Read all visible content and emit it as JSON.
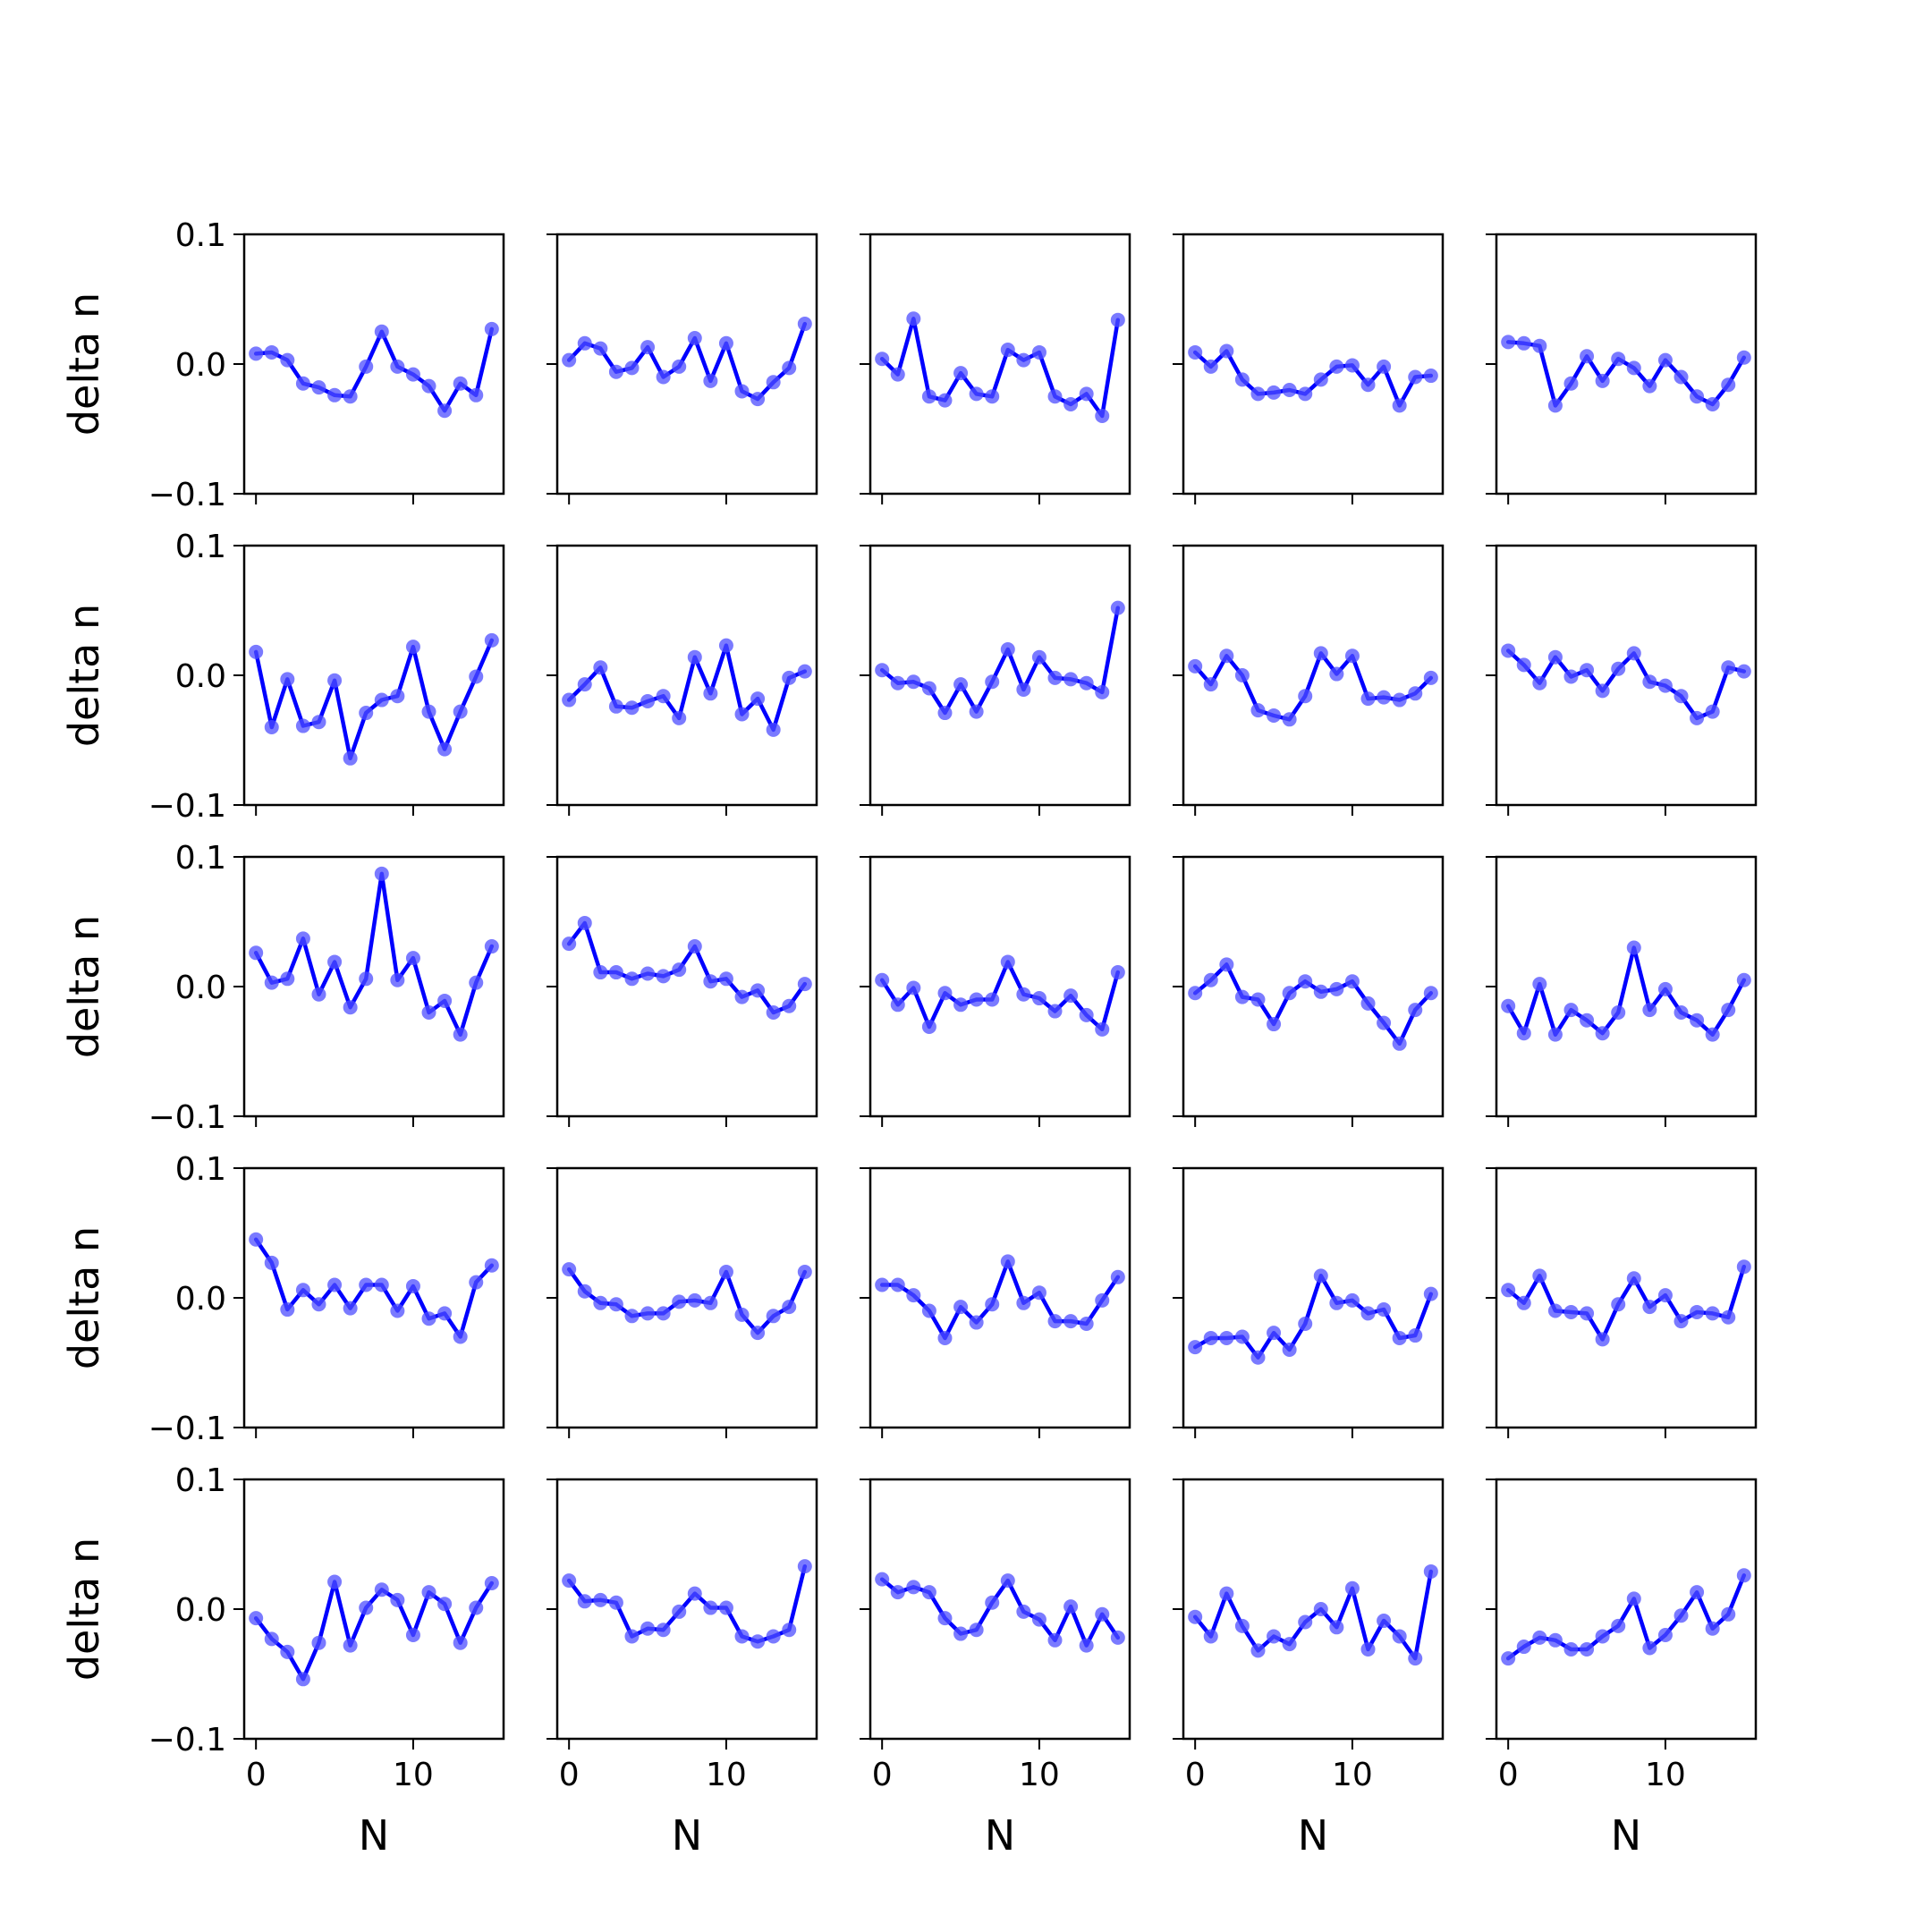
{
  "colors": {
    "line": "#0000ff",
    "marker": "#4d4dff"
  },
  "chart_data": {
    "type": "line",
    "grid": false,
    "rows": 5,
    "cols": 5,
    "xlabel": "N",
    "ylabel": "delta n",
    "xlim": [
      -0.75,
      15.75
    ],
    "ylim": [
      -0.1,
      0.1
    ],
    "xticks": [
      0,
      10
    ],
    "xtick_labels": [
      "0",
      "10"
    ],
    "yticks": [
      -0.1,
      0.0,
      0.1
    ],
    "ytick_labels": [
      "−0.1",
      "0.0",
      "0.1"
    ],
    "x": [
      0,
      1,
      2,
      3,
      4,
      5,
      6,
      7,
      8,
      9,
      10,
      11,
      12,
      13,
      14,
      15
    ],
    "panels": [
      [
        0.008,
        0.009,
        0.003,
        -0.015,
        -0.018,
        -0.024,
        -0.025,
        -0.002,
        0.025,
        -0.002,
        -0.008,
        -0.017,
        -0.036,
        -0.015,
        -0.024,
        0.027
      ],
      [
        0.003,
        0.016,
        0.012,
        -0.006,
        -0.003,
        0.013,
        -0.01,
        -0.002,
        0.02,
        -0.013,
        0.016,
        -0.021,
        -0.027,
        -0.014,
        -0.003,
        0.031
      ],
      [
        0.004,
        -0.008,
        0.035,
        -0.025,
        -0.028,
        -0.007,
        -0.023,
        -0.025,
        0.011,
        0.003,
        0.009,
        -0.025,
        -0.031,
        -0.023,
        -0.04,
        0.034
      ],
      [
        0.009,
        -0.002,
        0.01,
        -0.012,
        -0.023,
        -0.022,
        -0.02,
        -0.023,
        -0.012,
        -0.002,
        -0.001,
        -0.016,
        -0.002,
        -0.032,
        -0.01,
        -0.009
      ],
      [
        0.017,
        0.016,
        0.014,
        -0.032,
        -0.015,
        0.006,
        -0.013,
        0.004,
        -0.003,
        -0.017,
        0.003,
        -0.01,
        -0.025,
        -0.031,
        -0.016,
        0.005
      ],
      [
        0.018,
        -0.04,
        -0.003,
        -0.039,
        -0.036,
        -0.004,
        -0.064,
        -0.029,
        -0.019,
        -0.016,
        0.022,
        -0.028,
        -0.057,
        -0.028,
        -0.001,
        0.027
      ],
      [
        -0.019,
        -0.007,
        0.006,
        -0.024,
        -0.025,
        -0.02,
        -0.016,
        -0.033,
        0.014,
        -0.014,
        0.023,
        -0.03,
        -0.018,
        -0.042,
        -0.002,
        0.003
      ],
      [
        0.004,
        -0.006,
        -0.005,
        -0.01,
        -0.029,
        -0.007,
        -0.028,
        -0.005,
        0.02,
        -0.011,
        0.014,
        -0.002,
        -0.003,
        -0.006,
        -0.013,
        0.052
      ],
      [
        0.007,
        -0.007,
        0.015,
        0.0,
        -0.027,
        -0.031,
        -0.034,
        -0.016,
        0.017,
        0.001,
        0.015,
        -0.018,
        -0.017,
        -0.019,
        -0.014,
        -0.002
      ],
      [
        0.019,
        0.008,
        -0.006,
        0.014,
        -0.001,
        0.004,
        -0.012,
        0.005,
        0.017,
        -0.005,
        -0.008,
        -0.016,
        -0.033,
        -0.028,
        0.006,
        0.003
      ],
      [
        0.026,
        0.003,
        0.006,
        0.037,
        -0.006,
        0.019,
        -0.016,
        0.006,
        0.087,
        0.005,
        0.022,
        -0.02,
        -0.011,
        -0.037,
        0.003,
        0.031
      ],
      [
        0.033,
        0.049,
        0.011,
        0.011,
        0.006,
        0.01,
        0.008,
        0.013,
        0.031,
        0.004,
        0.006,
        -0.008,
        -0.003,
        -0.02,
        -0.015,
        0.002
      ],
      [
        0.005,
        -0.014,
        -0.001,
        -0.031,
        -0.005,
        -0.014,
        -0.01,
        -0.01,
        0.019,
        -0.006,
        -0.009,
        -0.019,
        -0.007,
        -0.022,
        -0.033,
        0.011
      ],
      [
        -0.005,
        0.005,
        0.017,
        -0.008,
        -0.01,
        -0.029,
        -0.005,
        0.004,
        -0.004,
        -0.002,
        0.004,
        -0.013,
        -0.028,
        -0.044,
        -0.018,
        -0.005
      ],
      [
        -0.015,
        -0.036,
        0.002,
        -0.037,
        -0.018,
        -0.026,
        -0.036,
        -0.02,
        0.03,
        -0.018,
        -0.002,
        -0.02,
        -0.026,
        -0.037,
        -0.018,
        0.005
      ],
      [
        0.045,
        0.027,
        -0.009,
        0.006,
        -0.005,
        0.01,
        -0.008,
        0.01,
        0.01,
        -0.01,
        0.009,
        -0.016,
        -0.012,
        -0.03,
        0.012,
        0.025
      ],
      [
        0.022,
        0.005,
        -0.004,
        -0.005,
        -0.014,
        -0.012,
        -0.012,
        -0.003,
        -0.002,
        -0.004,
        0.02,
        -0.013,
        -0.027,
        -0.014,
        -0.007,
        0.02
      ],
      [
        0.01,
        0.01,
        0.002,
        -0.01,
        -0.031,
        -0.007,
        -0.019,
        -0.005,
        0.028,
        -0.004,
        0.004,
        -0.018,
        -0.018,
        -0.02,
        -0.002,
        0.016
      ],
      [
        -0.038,
        -0.031,
        -0.031,
        -0.03,
        -0.046,
        -0.027,
        -0.04,
        -0.02,
        0.017,
        -0.004,
        -0.002,
        -0.012,
        -0.009,
        -0.031,
        -0.029,
        0.003
      ],
      [
        0.006,
        -0.004,
        0.017,
        -0.01,
        -0.011,
        -0.012,
        -0.032,
        -0.005,
        0.015,
        -0.007,
        0.002,
        -0.018,
        -0.011,
        -0.012,
        -0.015,
        0.024
      ],
      [
        -0.007,
        -0.023,
        -0.033,
        -0.054,
        -0.026,
        0.021,
        -0.028,
        0.001,
        0.015,
        0.007,
        -0.02,
        0.013,
        0.004,
        -0.026,
        0.001,
        0.02
      ],
      [
        0.022,
        0.006,
        0.007,
        0.005,
        -0.021,
        -0.015,
        -0.016,
        -0.002,
        0.012,
        0.001,
        0.001,
        -0.021,
        -0.025,
        -0.021,
        -0.016,
        0.033
      ],
      [
        0.023,
        0.013,
        0.017,
        0.013,
        -0.007,
        -0.019,
        -0.016,
        0.005,
        0.022,
        -0.002,
        -0.008,
        -0.024,
        0.002,
        -0.028,
        -0.004,
        -0.022
      ],
      [
        -0.006,
        -0.021,
        0.012,
        -0.013,
        -0.032,
        -0.021,
        -0.027,
        -0.01,
        0.0,
        -0.014,
        0.016,
        -0.031,
        -0.009,
        -0.021,
        -0.038,
        0.029
      ],
      [
        -0.038,
        -0.029,
        -0.022,
        -0.024,
        -0.031,
        -0.031,
        -0.021,
        -0.013,
        0.008,
        -0.03,
        -0.02,
        -0.005,
        0.013,
        -0.015,
        -0.004,
        0.026
      ]
    ]
  }
}
